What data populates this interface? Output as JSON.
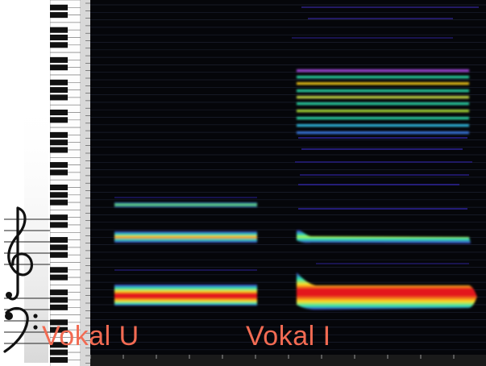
{
  "labels": {
    "vokal_u": "Vokal U",
    "vokal_i": "Vokal I"
  },
  "colors": {
    "label": "#f26b53",
    "background": "#05060a",
    "heat_low": "#3a2cc9",
    "heat_mid": "#2ee6b0",
    "heat_high": "#ffe020",
    "heat_peak": "#e3161c"
  },
  "icons": {
    "treble_clef": "treble-clef-icon",
    "bass_clef": "bass-clef-icon"
  }
}
